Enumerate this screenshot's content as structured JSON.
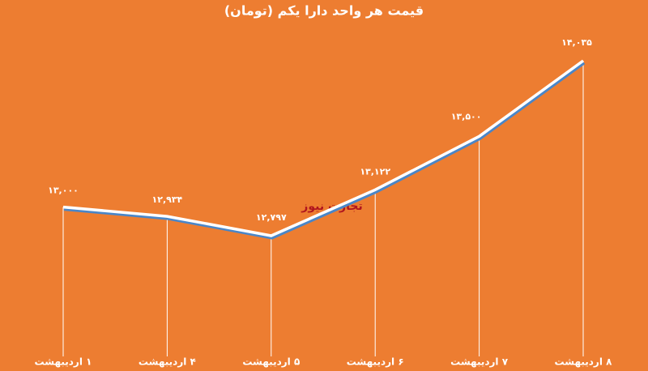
{
  "chart_data": {
    "type": "line",
    "title": "قیمت هر واحد دارا یکم (تومان)",
    "watermark": "تجارت نیوز",
    "categories": [
      "۱ اردیبهشت",
      "۴ اردیبهشت",
      "۵ اردیبهشت",
      "۶ اردیبهشت",
      "۷ اردیبهشت",
      "۸ اردیبهشت"
    ],
    "series": [
      {
        "name": "قیمت",
        "color": "#ffffff",
        "values": [
          13000,
          12934,
          12797,
          13122,
          13500,
          14035
        ],
        "value_labels": [
          "۱۳,۰۰۰",
          "۱۲,۹۳۴",
          "۱۲,۷۹۷",
          "۱۳,۱۲۲",
          "۱۳,۵۰۰",
          "۱۴,۰۳۵"
        ]
      }
    ],
    "background": "#ed7d31",
    "shadow_color": "#4a86c8"
  }
}
